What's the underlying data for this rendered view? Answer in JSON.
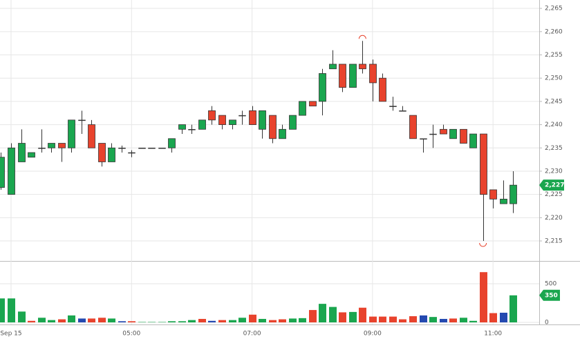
{
  "chart_data": {
    "type": "candlestick",
    "x": [
      "02:50",
      "03:00",
      "03:10",
      "03:20",
      "03:30",
      "03:40",
      "03:50",
      "04:00",
      "04:10",
      "04:20",
      "04:30",
      "04:40",
      "04:50",
      "05:00",
      "05:10",
      "05:20",
      "05:30",
      "05:40",
      "05:50",
      "06:00",
      "06:10",
      "06:20",
      "06:30",
      "06:40",
      "06:50",
      "07:00",
      "07:10",
      "07:20",
      "07:30",
      "07:40",
      "07:50",
      "08:00",
      "08:10",
      "08:20",
      "08:30",
      "08:40",
      "08:50",
      "09:00",
      "09:10",
      "09:20",
      "09:30",
      "09:40",
      "09:50",
      "10:00",
      "10:10",
      "10:20",
      "10:30",
      "10:40",
      "10:50",
      "11:00",
      "11:10",
      "11:20"
    ],
    "open": [
      2226.5,
      2225,
      2232,
      2233,
      2235,
      2235,
      2236,
      2235,
      2241,
      2240,
      2236,
      2232,
      2235,
      2234,
      2235,
      2235,
      2235,
      2235,
      2239,
      2239,
      2239,
      2243,
      2242,
      2240,
      2242,
      2243,
      2239,
      2242,
      2237,
      2239,
      2242,
      2245,
      2245,
      2252,
      2253,
      2248,
      2253,
      2253,
      2250,
      2244,
      2243,
      2242,
      2237,
      2238,
      2239,
      2237,
      2239,
      2235,
      2238,
      2226,
      2223,
      2223
    ],
    "high": [
      2234,
      2236,
      2239,
      2234,
      2239,
      2236,
      2236,
      2241,
      2243,
      2241,
      2236,
      2236,
      2235.5,
      2234.5,
      2235,
      2235,
      2235,
      2237,
      2240,
      2240,
      2241,
      2244,
      2242,
      2241,
      2243,
      2244,
      2243,
      2242,
      2240,
      2242,
      2245,
      2245,
      2252,
      2256,
      2253,
      2253,
      2258,
      2254,
      2251,
      2246,
      2244,
      2242,
      2237,
      2240,
      2240,
      2239,
      2239,
      2238,
      2238,
      2226,
      2228,
      2230
    ],
    "low": [
      2226,
      2225,
      2232,
      2233,
      2234,
      2234,
      2232,
      2234,
      2238,
      2235,
      2231,
      2232,
      2234,
      2233,
      2235,
      2235,
      2235,
      2234,
      2238,
      2238,
      2239,
      2240,
      2239,
      2239,
      2240,
      2240,
      2237,
      2236,
      2237,
      2239,
      2242,
      2244,
      2242,
      2252,
      2247,
      2248,
      2251,
      2245,
      2245,
      2243,
      2243,
      2237,
      2234,
      2235,
      2238,
      2237,
      2236,
      2235,
      2215,
      2222,
      2223,
      2221
    ],
    "close": [
      2233,
      2235,
      2236,
      2234,
      2235,
      2236,
      2235,
      2241,
      2241,
      2235,
      2232,
      2235,
      2235,
      2234,
      2235,
      2235,
      2235,
      2237,
      2240,
      2239,
      2241,
      2241,
      2240,
      2241,
      2242,
      2240,
      2243,
      2237,
      2239,
      2242,
      2245,
      2244,
      2251,
      2253,
      2248,
      2253,
      2252,
      2249,
      2245,
      2244,
      2243,
      2237,
      2237,
      2238,
      2238,
      2239,
      2236,
      2238,
      2225,
      2224,
      2224,
      2227
    ],
    "last_close_label": "2,227",
    "up_color": "#1aa64f",
    "down_color": "#e8432d",
    "xlim": [
      "02:49",
      "11:46"
    ],
    "xticks": [
      {
        "value": "03:00",
        "label": "Sep 15"
      },
      "05:00",
      "07:00",
      "09:00",
      "11:00"
    ],
    "ylim": [
      2210.7,
      2266.8
    ],
    "yticks": [
      {
        "value": 2215,
        "label": "2,215"
      },
      {
        "value": 2220,
        "label": "2,220"
      },
      {
        "value": 2225,
        "label": "2,225"
      },
      {
        "value": 2230,
        "label": "2,230"
      },
      {
        "value": 2235,
        "label": "2,235"
      },
      {
        "value": 2240,
        "label": "2,240"
      },
      {
        "value": 2245,
        "label": "2,245"
      },
      {
        "value": 2250,
        "label": "2,250"
      },
      {
        "value": 2255,
        "label": "2,255"
      },
      {
        "value": 2260,
        "label": "2,260"
      },
      {
        "value": 2265,
        "label": "2,265"
      }
    ],
    "grid": true,
    "volume": [
      310,
      310,
      140,
      20,
      60,
      30,
      40,
      90,
      50,
      50,
      60,
      50,
      15,
      15,
      5,
      5,
      5,
      15,
      15,
      30,
      45,
      20,
      30,
      30,
      60,
      100,
      45,
      30,
      40,
      50,
      55,
      160,
      240,
      200,
      130,
      135,
      190,
      75,
      75,
      75,
      40,
      80,
      90,
      70,
      45,
      50,
      60,
      20,
      650,
      120,
      125,
      350
    ],
    "volume_colors": [
      "#1aa64f",
      "#1aa64f",
      "#1aa64f",
      "#e8432d",
      "#1aa64f",
      "#1aa64f",
      "#e8432d",
      "#1aa64f",
      "#2449b0",
      "#e8432d",
      "#e8432d",
      "#1aa64f",
      "#2449b0",
      "#e8432d",
      "#1aa64f",
      "#1aa64f",
      "#1aa64f",
      "#1aa64f",
      "#1aa64f",
      "#1aa64f",
      "#e8432d",
      "#2449b0",
      "#e8432d",
      "#1aa64f",
      "#1aa64f",
      "#e8432d",
      "#1aa64f",
      "#e8432d",
      "#e8432d",
      "#1aa64f",
      "#1aa64f",
      "#e8432d",
      "#1aa64f",
      "#1aa64f",
      "#e8432d",
      "#1aa64f",
      "#e8432d",
      "#e8432d",
      "#e8432d",
      "#e8432d",
      "#e8432d",
      "#e8432d",
      "#2449b0",
      "#1aa64f",
      "#2449b0",
      "#e8432d",
      "#1aa64f",
      "#1aa64f",
      "#e8432d",
      "#e8432d",
      "#2449b0",
      "#1aa64f"
    ],
    "volume_ylim": [
      0,
      777
    ],
    "volume_yticks": [
      0,
      500
    ]
  }
}
